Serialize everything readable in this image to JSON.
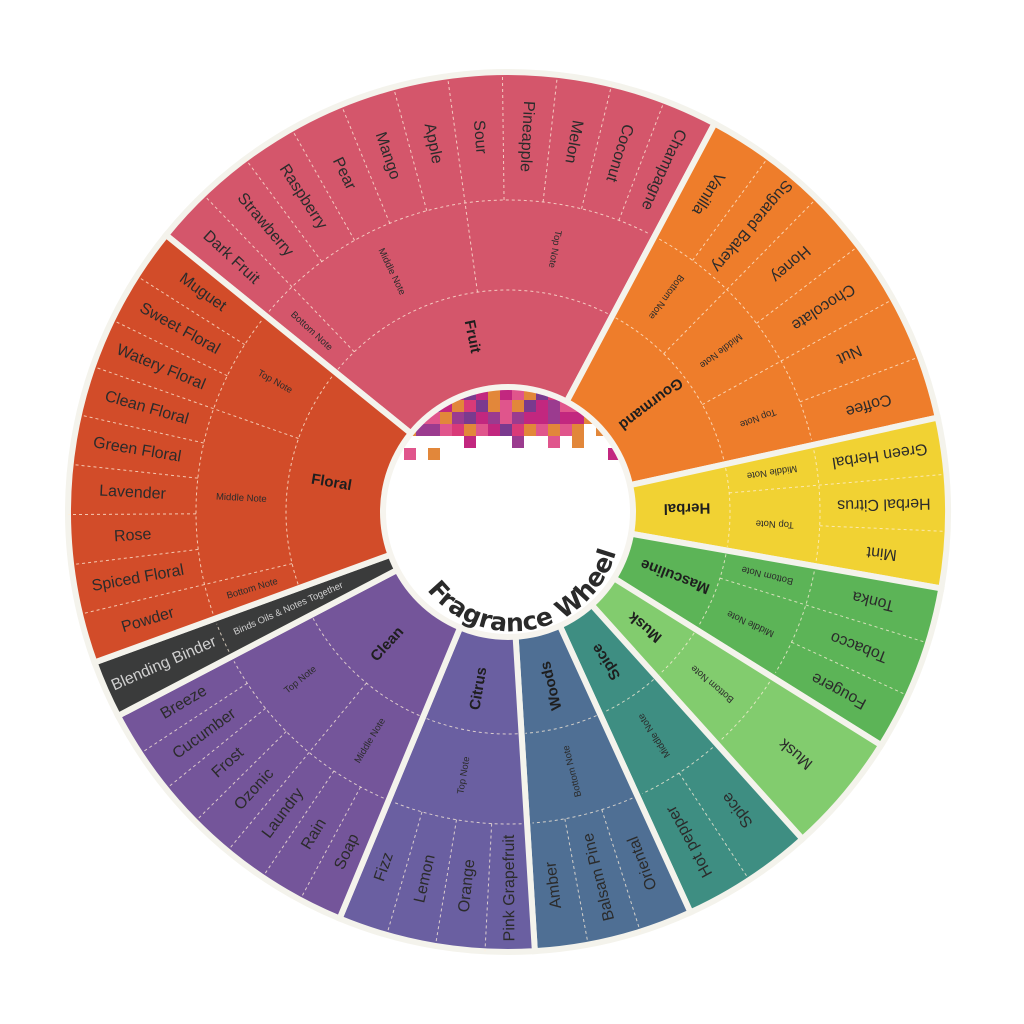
{
  "title": "Fragrance Wheel",
  "categories": [
    {
      "name": "Fruit",
      "color": "#d4566b",
      "notes": [
        {
          "label": "Bottom Note",
          "items": [
            "Dark Fruit"
          ]
        },
        {
          "label": "Middle Note",
          "items": [
            "Strawberry",
            "Raspberry",
            "Pear",
            "Mango",
            "Apple"
          ]
        },
        {
          "label": "Top Note",
          "items": [
            "Sour",
            "Pineapple",
            "Melon",
            "Coconut",
            "Champagne"
          ]
        }
      ]
    },
    {
      "name": "Gourmand",
      "color": "#ee7d2b",
      "notes": [
        {
          "label": "Bottom Note",
          "items": [
            "Vanilla",
            "Sugared Bakery"
          ]
        },
        {
          "label": "Middle Note",
          "items": [
            "Honey",
            "Chocolate"
          ]
        },
        {
          "label": "Top Note",
          "items": [
            "Nut",
            "Coffee"
          ]
        }
      ]
    },
    {
      "name": "Herbal",
      "color": "#f1d233",
      "notes": [
        {
          "label": "Middle Note",
          "items": [
            "Green Herbal"
          ]
        },
        {
          "label": "Top Note",
          "items": [
            "Herbal Citrus",
            "Mint"
          ]
        }
      ]
    },
    {
      "name": "Masculine",
      "color": "#5cb457",
      "notes": [
        {
          "label": "Bottom Note",
          "items": [
            "Tonka"
          ]
        },
        {
          "label": "Middle Note",
          "items": [
            "Tobacco",
            "Fougere"
          ]
        }
      ]
    },
    {
      "name": "Musk",
      "color": "#82cc6e",
      "notes": [
        {
          "label": "Bottom Note",
          "items": [
            "Musk"
          ]
        }
      ]
    },
    {
      "name": "Spice",
      "color": "#3e8e82",
      "notes": [
        {
          "label": "Middle Note",
          "items": [
            "Spice",
            "Hot pepper"
          ]
        }
      ]
    },
    {
      "name": "Woods",
      "color": "#4f6f94",
      "notes": [
        {
          "label": "Bottom Note",
          "items": [
            "Oriental",
            "Balsam Pine",
            "Amber"
          ]
        }
      ]
    },
    {
      "name": "Citrus",
      "color": "#6a5fa1",
      "notes": [
        {
          "label": "Top Note",
          "items": [
            "Pink Grapefruit",
            "Orange",
            "Lemon",
            "Fizz"
          ]
        }
      ]
    },
    {
      "name": "Clean",
      "color": "#74559a",
      "notes": [
        {
          "label": "Middle Note",
          "items": [
            "Soap",
            "Rain",
            "Laundry"
          ]
        },
        {
          "label": "Top Note",
          "items": [
            "Ozonic",
            "Frost",
            "Cucumber",
            "Breeze"
          ]
        }
      ]
    },
    {
      "name": "",
      "color": "#3a3b3b",
      "notes": [
        {
          "label": "Binds Oils & Notes Together",
          "items": [
            "Blending Binder"
          ]
        }
      ]
    },
    {
      "name": "Floral",
      "color": "#d24c29",
      "notes": [
        {
          "label": "Bottom Note",
          "items": [
            "Powder"
          ]
        },
        {
          "label": "Middle Note",
          "items": [
            "Spiced Floral",
            "Rose",
            "Lavender",
            "Green Floral",
            "Clean Floral"
          ]
        },
        {
          "label": "Top Note",
          "items": [
            "Watery Floral",
            "Sweet Floral",
            "Muguet"
          ]
        }
      ]
    }
  ],
  "mosaic_colors": [
    "#c2277f",
    "#7a3a8e",
    "#e2873a",
    "#d93a78",
    "#9b3b8f",
    "#e0558c"
  ]
}
